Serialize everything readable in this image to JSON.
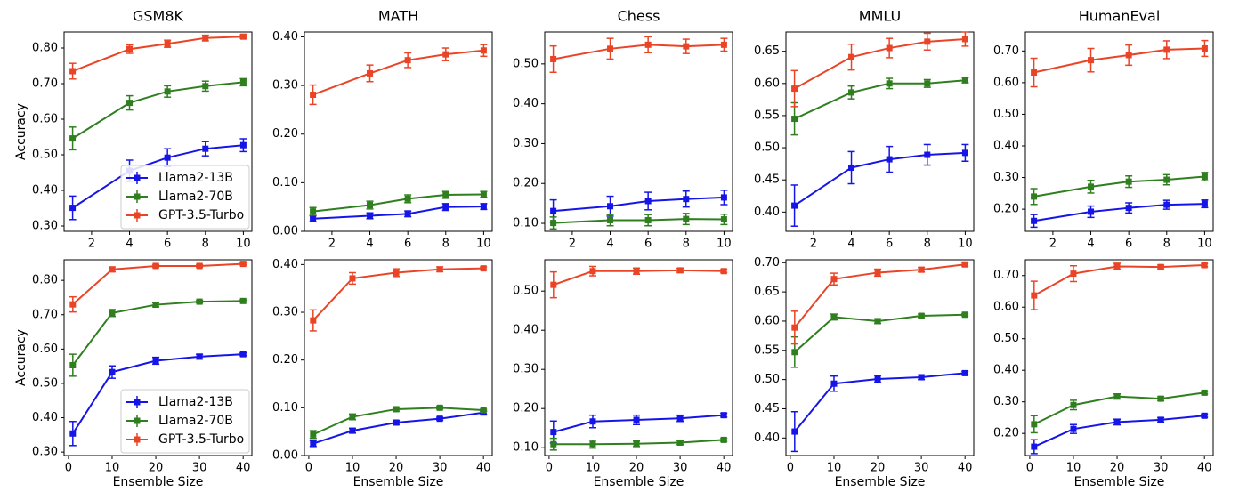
{
  "chart_data": [
    {
      "type": "line",
      "title": "GSM8K",
      "ylabel": "Accuracy",
      "legend": "lower right",
      "x": [
        1,
        4,
        6,
        8,
        10
      ],
      "xlim": [
        0.55,
        10.45
      ],
      "xticks": [
        2,
        4,
        6,
        8,
        10
      ],
      "ylim": [
        0.285,
        0.845
      ],
      "yticks": [
        {
          "value": 0.3,
          "label": "0.30"
        },
        {
          "value": 0.4,
          "label": "0.40"
        },
        {
          "value": 0.5,
          "label": "0.50"
        },
        {
          "value": 0.6,
          "label": "0.60"
        },
        {
          "value": 0.7,
          "label": "0.70"
        },
        {
          "value": 0.8,
          "label": "0.80"
        }
      ],
      "series": [
        {
          "name": "Llama2-13B",
          "color": "#1515e8",
          "values": [
            0.351,
            0.455,
            0.492,
            0.517,
            0.527
          ],
          "errors": [
            0.033,
            0.03,
            0.025,
            0.02,
            0.018
          ]
        },
        {
          "name": "Llama2-70B",
          "color": "#2f7f1f",
          "values": [
            0.546,
            0.646,
            0.678,
            0.693,
            0.704
          ],
          "errors": [
            0.032,
            0.02,
            0.016,
            0.014,
            0.01
          ]
        },
        {
          "name": "GPT-3.5-Turbo",
          "color": "#ea4427",
          "values": [
            0.735,
            0.797,
            0.812,
            0.828,
            0.832
          ],
          "errors": [
            0.022,
            0.012,
            0.01,
            0.008,
            0.005
          ]
        }
      ]
    },
    {
      "type": "line",
      "title": "MATH",
      "x": [
        1,
        4,
        6,
        8,
        10
      ],
      "xlim": [
        0.55,
        10.45
      ],
      "xticks": [
        2,
        4,
        6,
        8,
        10
      ],
      "ylim": [
        0,
        0.41
      ],
      "yticks": [
        {
          "value": 0,
          "label": "0.00"
        },
        {
          "value": 0.1,
          "label": "0.10"
        },
        {
          "value": 0.2,
          "label": "0.20"
        },
        {
          "value": 0.3,
          "label": "0.30"
        },
        {
          "value": 0.4,
          "label": "0.40"
        }
      ],
      "series": [
        {
          "color": "#1515e8",
          "values": [
            0.026,
            0.032,
            0.036,
            0.05,
            0.051
          ],
          "errors": [
            0.006,
            0.006,
            0.006,
            0.007,
            0.006
          ]
        },
        {
          "color": "#2f7f1f",
          "values": [
            0.041,
            0.054,
            0.067,
            0.075,
            0.076
          ],
          "errors": [
            0.008,
            0.008,
            0.008,
            0.007,
            0.006
          ]
        },
        {
          "color": "#ea4427",
          "values": [
            0.281,
            0.325,
            0.352,
            0.364,
            0.372
          ],
          "errors": [
            0.02,
            0.017,
            0.015,
            0.013,
            0.012
          ]
        }
      ]
    },
    {
      "type": "line",
      "title": "Chess",
      "x": [
        1,
        4,
        6,
        8,
        10
      ],
      "xlim": [
        0.55,
        10.45
      ],
      "xticks": [
        2,
        4,
        6,
        8,
        10
      ],
      "ylim": [
        0.08,
        0.58
      ],
      "yticks": [
        {
          "value": 0.1,
          "label": "0.10"
        },
        {
          "value": 0.2,
          "label": "0.20"
        },
        {
          "value": 0.3,
          "label": "0.30"
        },
        {
          "value": 0.4,
          "label": "0.40"
        },
        {
          "value": 0.5,
          "label": "0.50"
        }
      ],
      "series": [
        {
          "color": "#1515e8",
          "values": [
            0.131,
            0.143,
            0.156,
            0.161,
            0.165
          ],
          "errors": [
            0.028,
            0.025,
            0.022,
            0.02,
            0.018
          ]
        },
        {
          "color": "#2f7f1f",
          "values": [
            0.101,
            0.108,
            0.108,
            0.111,
            0.11
          ],
          "errors": [
            0.015,
            0.014,
            0.014,
            0.014,
            0.013
          ]
        },
        {
          "color": "#ea4427",
          "values": [
            0.512,
            0.538,
            0.548,
            0.544,
            0.548
          ],
          "errors": [
            0.033,
            0.026,
            0.02,
            0.018,
            0.016
          ]
        }
      ]
    },
    {
      "type": "line",
      "title": "MMLU",
      "x": [
        1,
        4,
        6,
        8,
        10
      ],
      "xlim": [
        0.55,
        10.45
      ],
      "xticks": [
        2,
        4,
        6,
        8,
        10
      ],
      "ylim": [
        0.37,
        0.68
      ],
      "yticks": [
        {
          "value": 0.4,
          "label": "0.40"
        },
        {
          "value": 0.45,
          "label": "0.45"
        },
        {
          "value": 0.5,
          "label": "0.50"
        },
        {
          "value": 0.55,
          "label": "0.55"
        },
        {
          "value": 0.6,
          "label": "0.60"
        },
        {
          "value": 0.65,
          "label": "0.65"
        }
      ],
      "series": [
        {
          "color": "#1515e8",
          "values": [
            0.41,
            0.469,
            0.482,
            0.489,
            0.492
          ],
          "errors": [
            0.032,
            0.025,
            0.02,
            0.016,
            0.013
          ]
        },
        {
          "color": "#2f7f1f",
          "values": [
            0.545,
            0.586,
            0.6,
            0.6,
            0.605
          ],
          "errors": [
            0.025,
            0.01,
            0.008,
            0.006,
            0.004
          ]
        },
        {
          "color": "#ea4427",
          "values": [
            0.592,
            0.641,
            0.655,
            0.665,
            0.669
          ],
          "errors": [
            0.028,
            0.02,
            0.015,
            0.013,
            0.011
          ]
        }
      ]
    },
    {
      "type": "line",
      "title": "HumanEval",
      "x": [
        1,
        4,
        6,
        8,
        10
      ],
      "xlim": [
        0.55,
        10.45
      ],
      "xticks": [
        2,
        4,
        6,
        8,
        10
      ],
      "ylim": [
        0.13,
        0.76
      ],
      "yticks": [
        {
          "value": 0.2,
          "label": "0.20"
        },
        {
          "value": 0.3,
          "label": "0.30"
        },
        {
          "value": 0.4,
          "label": "0.40"
        },
        {
          "value": 0.5,
          "label": "0.50"
        },
        {
          "value": 0.6,
          "label": "0.60"
        },
        {
          "value": 0.7,
          "label": "0.70"
        }
      ],
      "series": [
        {
          "color": "#1515e8",
          "values": [
            0.163,
            0.192,
            0.204,
            0.214,
            0.217
          ],
          "errors": [
            0.02,
            0.018,
            0.016,
            0.014,
            0.012
          ]
        },
        {
          "color": "#2f7f1f",
          "values": [
            0.24,
            0.271,
            0.287,
            0.293,
            0.303
          ],
          "errors": [
            0.025,
            0.02,
            0.018,
            0.016,
            0.013
          ]
        },
        {
          "color": "#ea4427",
          "values": [
            0.632,
            0.671,
            0.687,
            0.704,
            0.708
          ],
          "errors": [
            0.045,
            0.037,
            0.032,
            0.028,
            0.025
          ]
        }
      ]
    },
    {
      "type": "line",
      "xlabel": "Ensemble Size",
      "ylabel": "Accuracy",
      "legend": "lower right",
      "x": [
        1,
        10,
        20,
        30,
        40
      ],
      "xlim": [
        -1,
        42
      ],
      "xticks": [
        0,
        10,
        20,
        30,
        40
      ],
      "ylim": [
        0.29,
        0.86
      ],
      "yticks": [
        {
          "value": 0.3,
          "label": "0.30"
        },
        {
          "value": 0.4,
          "label": "0.40"
        },
        {
          "value": 0.5,
          "label": "0.50"
        },
        {
          "value": 0.6,
          "label": "0.60"
        },
        {
          "value": 0.7,
          "label": "0.70"
        },
        {
          "value": 0.8,
          "label": "0.80"
        }
      ],
      "series": [
        {
          "name": "Llama2-13B",
          "color": "#1515e8",
          "values": [
            0.354,
            0.533,
            0.566,
            0.578,
            0.585
          ],
          "errors": [
            0.035,
            0.018,
            0.01,
            0.007,
            0.004
          ]
        },
        {
          "name": "Llama2-70B",
          "color": "#2f7f1f",
          "values": [
            0.553,
            0.705,
            0.729,
            0.738,
            0.74
          ],
          "errors": [
            0.032,
            0.01,
            0.006,
            0.004,
            0.003
          ]
        },
        {
          "name": "GPT-3.5-Turbo",
          "color": "#ea4427",
          "values": [
            0.73,
            0.832,
            0.842,
            0.842,
            0.848
          ],
          "errors": [
            0.022,
            0.007,
            0.004,
            0.004,
            0.003
          ]
        }
      ]
    },
    {
      "type": "line",
      "xlabel": "Ensemble Size",
      "x": [
        1,
        10,
        20,
        30,
        40
      ],
      "xlim": [
        -1,
        42
      ],
      "xticks": [
        0,
        10,
        20,
        30,
        40
      ],
      "ylim": [
        0,
        0.41
      ],
      "yticks": [
        {
          "value": 0,
          "label": "0.00"
        },
        {
          "value": 0.1,
          "label": "0.10"
        },
        {
          "value": 0.2,
          "label": "0.20"
        },
        {
          "value": 0.3,
          "label": "0.30"
        },
        {
          "value": 0.4,
          "label": "0.40"
        }
      ],
      "series": [
        {
          "color": "#1515e8",
          "values": [
            0.025,
            0.052,
            0.069,
            0.077,
            0.09
          ],
          "errors": [
            0.006,
            0.005,
            0.004,
            0.003,
            0.003
          ]
        },
        {
          "color": "#2f7f1f",
          "values": [
            0.044,
            0.081,
            0.097,
            0.1,
            0.095
          ],
          "errors": [
            0.008,
            0.006,
            0.004,
            0.003,
            0.002
          ]
        },
        {
          "color": "#ea4427",
          "values": [
            0.283,
            0.371,
            0.383,
            0.39,
            0.392
          ],
          "errors": [
            0.022,
            0.012,
            0.008,
            0.005,
            0.003
          ]
        }
      ]
    },
    {
      "type": "line",
      "xlabel": "Ensemble Size",
      "x": [
        1,
        10,
        20,
        30,
        40
      ],
      "xlim": [
        -1,
        42
      ],
      "xticks": [
        0,
        10,
        20,
        30,
        40
      ],
      "ylim": [
        0.08,
        0.58
      ],
      "yticks": [
        {
          "value": 0.1,
          "label": "0.10"
        },
        {
          "value": 0.2,
          "label": "0.20"
        },
        {
          "value": 0.3,
          "label": "0.30"
        },
        {
          "value": 0.4,
          "label": "0.40"
        },
        {
          "value": 0.5,
          "label": "0.50"
        }
      ],
      "series": [
        {
          "color": "#1515e8",
          "values": [
            0.14,
            0.167,
            0.171,
            0.175,
            0.183
          ],
          "errors": [
            0.028,
            0.016,
            0.012,
            0.008,
            0.005
          ]
        },
        {
          "color": "#2f7f1f",
          "values": [
            0.109,
            0.109,
            0.11,
            0.113,
            0.12
          ],
          "errors": [
            0.015,
            0.01,
            0.007,
            0.005,
            0.004
          ]
        },
        {
          "color": "#ea4427",
          "values": [
            0.516,
            0.551,
            0.551,
            0.553,
            0.551
          ],
          "errors": [
            0.033,
            0.012,
            0.008,
            0.005,
            0.004
          ]
        }
      ]
    },
    {
      "type": "line",
      "xlabel": "Ensemble Size",
      "x": [
        1,
        10,
        20,
        30,
        40
      ],
      "xlim": [
        -1,
        42
      ],
      "xticks": [
        0,
        10,
        20,
        30,
        40
      ],
      "ylim": [
        0.37,
        0.705
      ],
      "yticks": [
        {
          "value": 0.4,
          "label": "0.40"
        },
        {
          "value": 0.45,
          "label": "0.45"
        },
        {
          "value": 0.5,
          "label": "0.50"
        },
        {
          "value": 0.55,
          "label": "0.55"
        },
        {
          "value": 0.6,
          "label": "0.60"
        },
        {
          "value": 0.65,
          "label": "0.65"
        },
        {
          "value": 0.7,
          "label": "0.70"
        }
      ],
      "series": [
        {
          "color": "#1515e8",
          "values": [
            0.411,
            0.493,
            0.501,
            0.504,
            0.511
          ],
          "errors": [
            0.034,
            0.013,
            0.006,
            0.004,
            0.003
          ]
        },
        {
          "color": "#2f7f1f",
          "values": [
            0.547,
            0.607,
            0.6,
            0.609,
            0.611
          ],
          "errors": [
            0.026,
            0.005,
            0.004,
            0.003,
            0.002
          ]
        },
        {
          "color": "#ea4427",
          "values": [
            0.589,
            0.672,
            0.683,
            0.688,
            0.697
          ],
          "errors": [
            0.028,
            0.01,
            0.006,
            0.004,
            0.003
          ]
        }
      ]
    },
    {
      "type": "line",
      "xlabel": "Ensemble Size",
      "x": [
        1,
        10,
        20,
        30,
        40
      ],
      "xlim": [
        -1,
        42
      ],
      "xticks": [
        0,
        10,
        20,
        30,
        40
      ],
      "ylim": [
        0.13,
        0.75
      ],
      "yticks": [
        {
          "value": 0.2,
          "label": "0.20"
        },
        {
          "value": 0.3,
          "label": "0.30"
        },
        {
          "value": 0.4,
          "label": "0.40"
        },
        {
          "value": 0.5,
          "label": "0.50"
        },
        {
          "value": 0.6,
          "label": "0.60"
        },
        {
          "value": 0.7,
          "label": "0.70"
        }
      ],
      "series": [
        {
          "color": "#1515e8",
          "values": [
            0.158,
            0.214,
            0.236,
            0.243,
            0.256
          ],
          "errors": [
            0.022,
            0.014,
            0.009,
            0.007,
            0.005
          ]
        },
        {
          "color": "#2f7f1f",
          "values": [
            0.229,
            0.29,
            0.317,
            0.31,
            0.329
          ],
          "errors": [
            0.027,
            0.015,
            0.008,
            0.006,
            0.004
          ]
        },
        {
          "color": "#ea4427",
          "values": [
            0.637,
            0.706,
            0.729,
            0.727,
            0.733
          ],
          "errors": [
            0.045,
            0.025,
            0.01,
            0.006,
            0.005
          ]
        }
      ]
    }
  ]
}
